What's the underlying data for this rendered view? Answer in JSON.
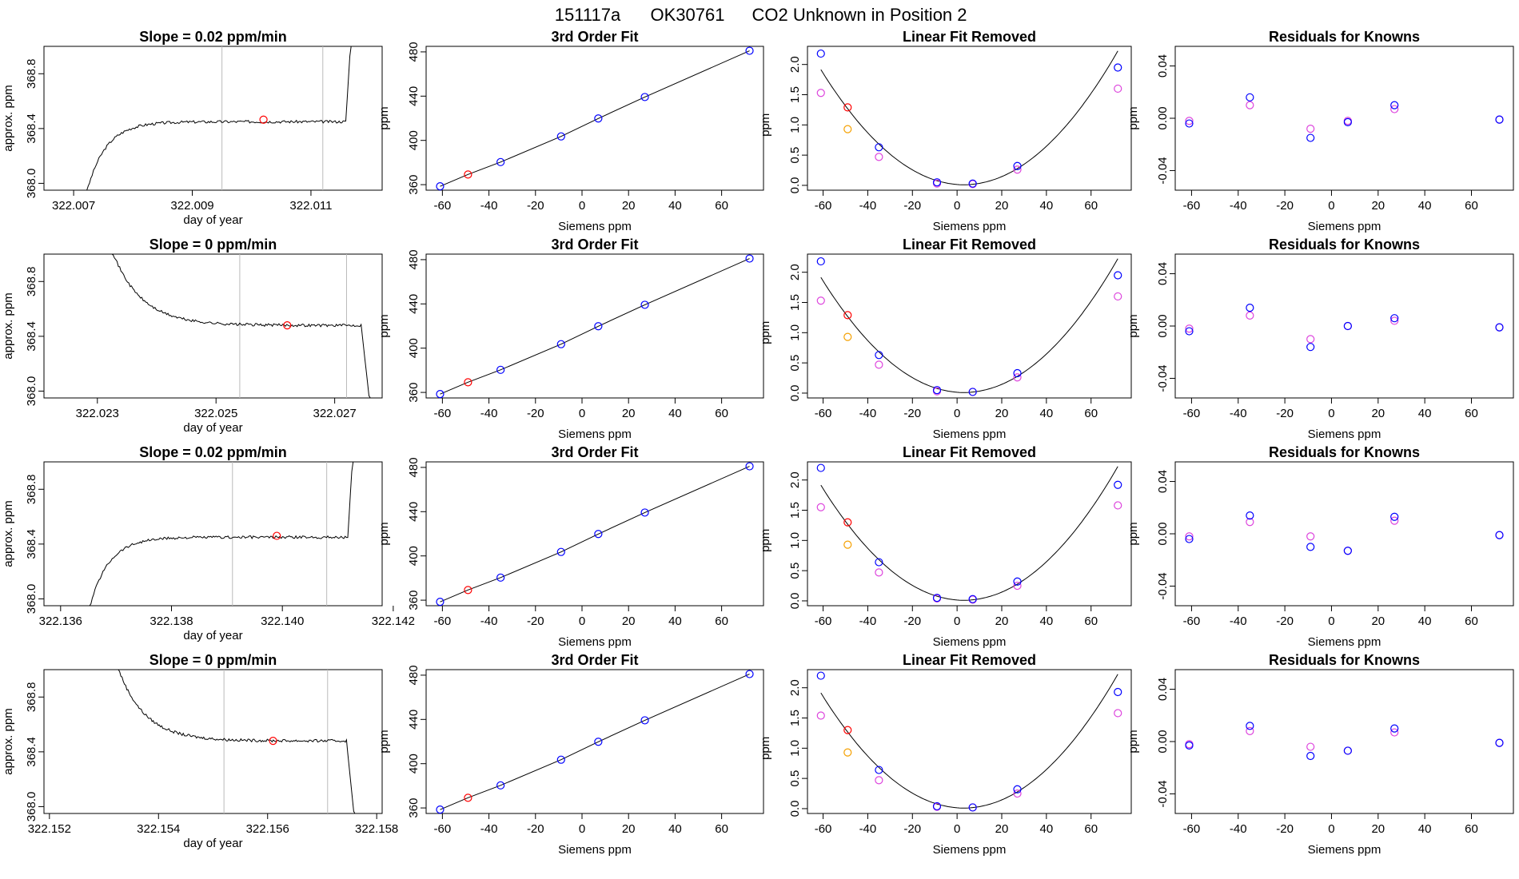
{
  "suptitle": {
    "id": "151117a",
    "tank": "OK30761",
    "desc": "CO2 Unknown in Position  2"
  },
  "colors": {
    "line": "#000000",
    "known": "#0000ff",
    "sample": "#ff0000",
    "residual_alt": "#dd44dd",
    "reference": "#f5a000",
    "marker_line": "#bbbbbb"
  },
  "labels": {
    "trace_x": "day of year",
    "trace_y": "approx. ppm",
    "fit_x": "Siemens ppm",
    "fit_y": "ppm",
    "fit_title": "3rd Order Fit",
    "lin_title": "Linear Fit Removed",
    "res_title": "Residuals for Knowns"
  },
  "chart_data": [
    {
      "type": "line",
      "panel": "trace",
      "row": 1,
      "title": "Slope =  0.02  ppm/min",
      "xlim": [
        322.0065,
        322.0122
      ],
      "ylim": [
        367.95,
        369.0
      ],
      "xticks": [
        322.007,
        322.009,
        322.011
      ],
      "xtick_labels": [
        "322.007",
        "322.009",
        "322.011"
      ],
      "yticks": [
        368.0,
        368.4,
        368.8
      ],
      "ytick_labels": [
        "368.0",
        "368.4",
        "368.8"
      ],
      "shape": "rise",
      "x_start": 322.0072,
      "x_end": 322.0117,
      "plateau": 368.45,
      "vlines": [
        322.0095,
        322.0112
      ],
      "marker": {
        "x": 322.0102,
        "y": 368.465
      }
    },
    {
      "type": "line",
      "panel": "fit",
      "row": 1,
      "x": [
        -61,
        -49,
        -35,
        -9,
        7,
        27,
        72
      ],
      "y": [
        358.5,
        369.2,
        380.4,
        403.6,
        419.8,
        439.2,
        481.0
      ]
    },
    {
      "type": "scatter",
      "panel": "linear",
      "row": 1,
      "blue": [
        [
          -61,
          2.18
        ],
        [
          -35,
          0.63
        ],
        [
          -9,
          0.05
        ],
        [
          7,
          0.03
        ],
        [
          27,
          0.32
        ],
        [
          72,
          1.95
        ]
      ],
      "magenta": [
        [
          -61,
          1.53
        ],
        [
          -35,
          0.47
        ],
        [
          -9,
          0.03
        ],
        [
          7,
          0.02
        ],
        [
          27,
          0.26
        ],
        [
          72,
          1.6
        ]
      ],
      "red": [
        [
          -49,
          1.29
        ]
      ],
      "orange": [
        [
          -49,
          0.93
        ]
      ]
    },
    {
      "type": "scatter",
      "panel": "resid",
      "row": 1,
      "blue": [
        [
          -61,
          -0.004
        ],
        [
          -35,
          0.016
        ],
        [
          -9,
          -0.015
        ],
        [
          7,
          -0.003
        ],
        [
          27,
          0.01
        ],
        [
          72,
          -0.001
        ]
      ],
      "magenta": [
        [
          -61,
          -0.002
        ],
        [
          -35,
          0.01
        ],
        [
          -9,
          -0.008
        ],
        [
          7,
          -0.002
        ],
        [
          27,
          0.007
        ],
        [
          72,
          -0.001
        ]
      ]
    },
    {
      "type": "line",
      "panel": "trace",
      "row": 2,
      "title": "Slope =  0  ppm/min",
      "xlim": [
        322.0221,
        322.0278
      ],
      "ylim": [
        367.95,
        369.0
      ],
      "xticks": [
        322.023,
        322.025,
        322.027
      ],
      "xtick_labels": [
        "322.023",
        "322.025",
        "322.027"
      ],
      "yticks": [
        368.0,
        368.4,
        368.8
      ],
      "ytick_labels": [
        "368.0",
        "368.4",
        "368.8"
      ],
      "shape": "fall",
      "x_start": 322.0232,
      "x_end": 322.0276,
      "plateau": 368.48,
      "vlines": [
        322.0254,
        322.0272
      ],
      "marker": {
        "x": 322.0262,
        "y": 368.48
      }
    },
    {
      "type": "line",
      "panel": "fit",
      "row": 2,
      "x": [
        -61,
        -49,
        -35,
        -9,
        7,
        27,
        72
      ],
      "y": [
        358.5,
        369.2,
        380.4,
        403.6,
        419.8,
        439.2,
        481.0
      ]
    },
    {
      "type": "scatter",
      "panel": "linear",
      "row": 2,
      "blue": [
        [
          -61,
          2.18
        ],
        [
          -35,
          0.63
        ],
        [
          -9,
          0.05
        ],
        [
          7,
          0.02
        ],
        [
          27,
          0.33
        ],
        [
          72,
          1.95
        ]
      ],
      "magenta": [
        [
          -61,
          1.53
        ],
        [
          -35,
          0.47
        ],
        [
          -9,
          0.03
        ],
        [
          7,
          0.02
        ],
        [
          27,
          0.26
        ],
        [
          72,
          1.6
        ]
      ],
      "red": [
        [
          -49,
          1.29
        ]
      ],
      "orange": [
        [
          -49,
          0.93
        ]
      ]
    },
    {
      "type": "scatter",
      "panel": "resid",
      "row": 2,
      "blue": [
        [
          -61,
          -0.004
        ],
        [
          -35,
          0.014
        ],
        [
          -9,
          -0.016
        ],
        [
          7,
          0.0
        ],
        [
          27,
          0.006
        ],
        [
          72,
          -0.001
        ]
      ],
      "magenta": [
        [
          -61,
          -0.002
        ],
        [
          -35,
          0.008
        ],
        [
          -9,
          -0.01
        ],
        [
          7,
          0.0
        ],
        [
          27,
          0.004
        ],
        [
          72,
          -0.001
        ]
      ]
    },
    {
      "type": "line",
      "panel": "trace",
      "row": 3,
      "title": "Slope =  0.02  ppm/min",
      "xlim": [
        322.1357,
        322.1418
      ],
      "ylim": [
        367.95,
        369.0
      ],
      "xticks": [
        322.136,
        322.138,
        322.14,
        322.142
      ],
      "xtick_labels": [
        "322.136",
        "322.138",
        "322.140",
        "322.142"
      ],
      "yticks": [
        368.0,
        368.4,
        368.8
      ],
      "ytick_labels": [
        "368.0",
        "368.4",
        "368.8"
      ],
      "shape": "rise",
      "x_start": 322.1365,
      "x_end": 322.1413,
      "plateau": 368.45,
      "vlines": [
        322.1391,
        322.1408
      ],
      "marker": {
        "x": 322.1399,
        "y": 368.46
      }
    },
    {
      "type": "line",
      "panel": "fit",
      "row": 3,
      "x": [
        -61,
        -49,
        -35,
        -9,
        7,
        27,
        72
      ],
      "y": [
        358.5,
        369.2,
        380.4,
        403.6,
        419.8,
        439.2,
        481.0
      ]
    },
    {
      "type": "scatter",
      "panel": "linear",
      "row": 3,
      "blue": [
        [
          -61,
          2.2
        ],
        [
          -35,
          0.64
        ],
        [
          -9,
          0.05
        ],
        [
          7,
          0.03
        ],
        [
          27,
          0.32
        ],
        [
          72,
          1.92
        ]
      ],
      "magenta": [
        [
          -61,
          1.55
        ],
        [
          -35,
          0.47
        ],
        [
          -9,
          0.04
        ],
        [
          7,
          0.02
        ],
        [
          27,
          0.25
        ],
        [
          72,
          1.58
        ]
      ],
      "red": [
        [
          -49,
          1.3
        ]
      ],
      "orange": [
        [
          -49,
          0.93
        ]
      ]
    },
    {
      "type": "scatter",
      "panel": "resid",
      "row": 3,
      "blue": [
        [
          -61,
          -0.004
        ],
        [
          -35,
          0.014
        ],
        [
          -9,
          -0.01
        ],
        [
          7,
          -0.013
        ],
        [
          27,
          0.013
        ],
        [
          72,
          -0.001
        ]
      ],
      "magenta": [
        [
          -61,
          -0.002
        ],
        [
          -35,
          0.009
        ],
        [
          -9,
          -0.002
        ],
        [
          7,
          -0.013
        ],
        [
          27,
          0.01
        ],
        [
          72,
          -0.001
        ]
      ]
    },
    {
      "type": "line",
      "panel": "trace",
      "row": 4,
      "title": "Slope =  0  ppm/min",
      "xlim": [
        322.1519,
        322.1581
      ],
      "ylim": [
        367.95,
        369.0
      ],
      "xticks": [
        322.152,
        322.154,
        322.156,
        322.158
      ],
      "xtick_labels": [
        "322.152",
        "322.154",
        "322.156",
        "322.158"
      ],
      "yticks": [
        368.0,
        368.4,
        368.8
      ],
      "ytick_labels": [
        "368.0",
        "368.4",
        "368.8"
      ],
      "shape": "fall",
      "x_start": 322.1532,
      "x_end": 322.1576,
      "plateau": 368.48,
      "vlines": [
        322.1552,
        322.1571
      ],
      "marker": {
        "x": 322.1561,
        "y": 368.48
      }
    },
    {
      "type": "line",
      "panel": "fit",
      "row": 4,
      "x": [
        -61,
        -49,
        -35,
        -9,
        7,
        27,
        72
      ],
      "y": [
        358.5,
        369.2,
        380.4,
        403.6,
        419.8,
        439.2,
        481.0
      ]
    },
    {
      "type": "scatter",
      "panel": "linear",
      "row": 4,
      "blue": [
        [
          -61,
          2.2
        ],
        [
          -35,
          0.64
        ],
        [
          -9,
          0.04
        ],
        [
          7,
          0.02
        ],
        [
          27,
          0.32
        ],
        [
          72,
          1.93
        ]
      ],
      "magenta": [
        [
          -61,
          1.54
        ],
        [
          -35,
          0.47
        ],
        [
          -9,
          0.03
        ],
        [
          7,
          0.02
        ],
        [
          27,
          0.25
        ],
        [
          72,
          1.58
        ]
      ],
      "red": [
        [
          -49,
          1.3
        ]
      ],
      "orange": [
        [
          -49,
          0.93
        ]
      ]
    },
    {
      "type": "scatter",
      "panel": "resid",
      "row": 4,
      "blue": [
        [
          -61,
          -0.003
        ],
        [
          -35,
          0.012
        ],
        [
          -9,
          -0.011
        ],
        [
          7,
          -0.007
        ],
        [
          27,
          0.01
        ],
        [
          72,
          -0.001
        ]
      ],
      "magenta": [
        [
          -61,
          -0.002
        ],
        [
          -35,
          0.008
        ],
        [
          -9,
          -0.004
        ],
        [
          7,
          -0.007
        ],
        [
          27,
          0.007
        ],
        [
          72,
          -0.001
        ]
      ]
    }
  ],
  "fit_axes": {
    "xlim": [
      -67,
      78
    ],
    "xticks": [
      -60,
      -40,
      -20,
      0,
      20,
      40,
      60
    ],
    "xtick_labels": [
      "-60",
      "-40",
      "-20",
      "0",
      "20",
      "40",
      "60"
    ],
    "fit_ylim": [
      355,
      485
    ],
    "fit_yticks": [
      360,
      400,
      440,
      480
    ],
    "fit_ytick_labels": [
      "360",
      "400",
      "440",
      "480"
    ],
    "lin_ylim": [
      -0.08,
      2.3
    ],
    "lin_yticks": [
      0.0,
      0.5,
      1.0,
      1.5,
      2.0
    ],
    "lin_ytick_labels": [
      "0.0",
      "0.5",
      "1.0",
      "1.5",
      "2.0"
    ],
    "res_ylim": [
      -0.055,
      0.055
    ],
    "res_yticks": [
      -0.04,
      0.0,
      0.04
    ],
    "res_ytick_labels": [
      "-0.04",
      "0.00",
      "0.04"
    ]
  }
}
